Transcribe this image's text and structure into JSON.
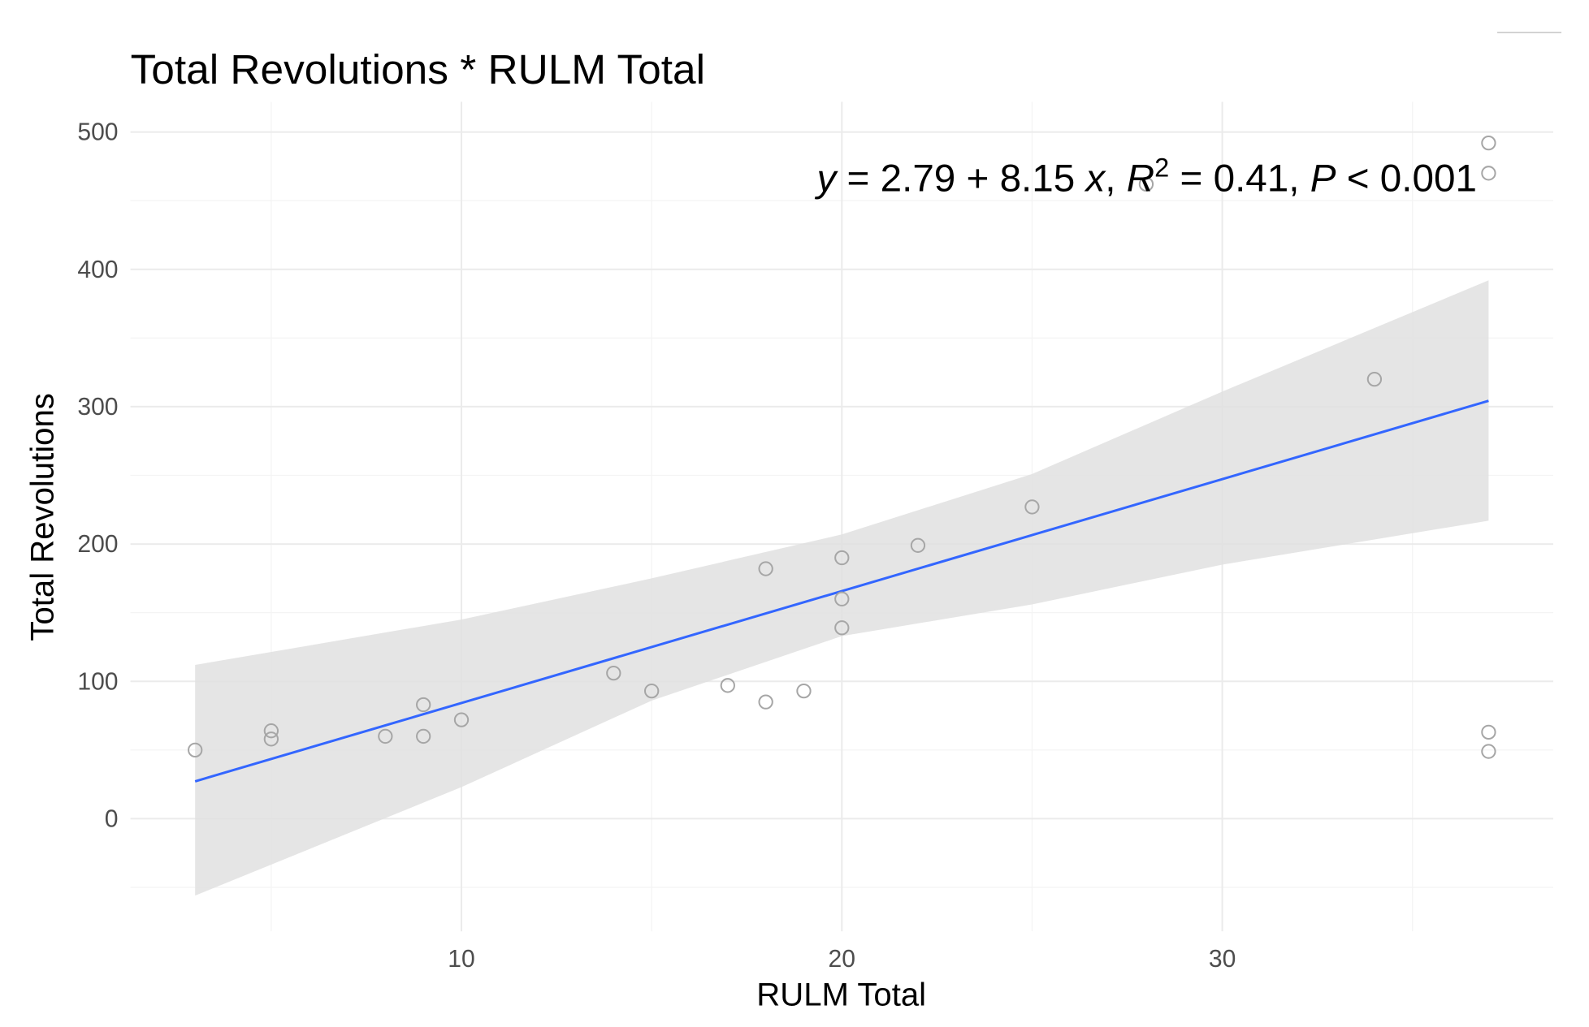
{
  "chart_data": {
    "type": "scatter",
    "title": "Total Revolutions * RULM Total",
    "x_label": "RULM Total",
    "y_label": "Total Revolutions",
    "annotation": [
      "y",
      " = 2.79 + 8.15 ",
      "x",
      ", ",
      "R",
      "2",
      " = 0.41, ",
      "P",
      " < 0.001"
    ],
    "x": [
      3,
      5,
      5,
      8,
      9,
      9,
      10,
      14,
      15,
      17,
      18,
      18,
      19,
      20,
      20,
      20,
      22,
      25,
      28,
      34,
      37,
      37,
      37,
      37
    ],
    "values": [
      50,
      64,
      58,
      60,
      83,
      60,
      72,
      106,
      93,
      97,
      182,
      85,
      93,
      190,
      160,
      139,
      199,
      227,
      462,
      320,
      492,
      470,
      63,
      49
    ],
    "point_color": "#a6a6a6",
    "fit": {
      "color": "#3366ff",
      "x": [
        3,
        37
      ],
      "y": [
        27.2,
        304.3
      ]
    },
    "band": {
      "color": "#e0e0e0",
      "x": [
        3,
        10,
        15,
        20,
        25,
        30,
        37
      ],
      "lower": [
        -56,
        23,
        86,
        133,
        156,
        185,
        217
      ],
      "upper": [
        112,
        145,
        175,
        207,
        251,
        311,
        392
      ]
    },
    "xlim": [
      1.3,
      38.7
    ],
    "ylim": [
      -82,
      522
    ],
    "xticks": [
      10,
      20,
      30
    ],
    "yticks": [
      0,
      100,
      200,
      300,
      400,
      500
    ],
    "xminor": [
      5,
      15,
      25,
      35
    ],
    "yminor": [
      -50,
      50,
      150,
      250,
      350,
      450
    ],
    "grid": true
  }
}
